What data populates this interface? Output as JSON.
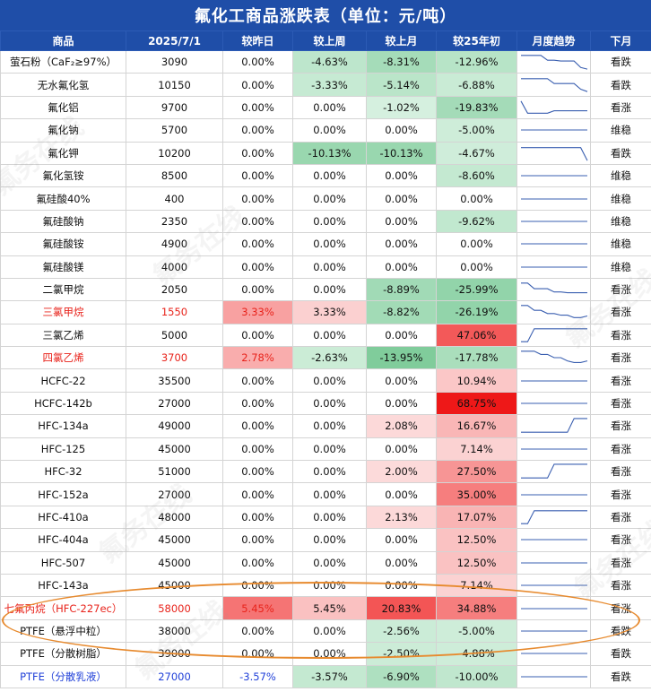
{
  "title": "氟化工商品涨跌表（单位：元/吨）",
  "columns": [
    "商品",
    "2025/7/1",
    "较昨日",
    "较上周",
    "较上月",
    "较25年初",
    "月度趋势",
    "下月"
  ],
  "watermark_text": "氟务在线",
  "colors": {
    "header_bg": "#1f4ea8",
    "red_text": "#e8231b",
    "blue_text": "#1f3fd8",
    "highlight_ring": "#e78a2e"
  },
  "rows": [
    {
      "name": "萤石粉（CaF₂≥97%）",
      "price": "3090",
      "day": "0.00%",
      "week": "-4.63%",
      "month": "-8.31%",
      "ytd": "-12.96%",
      "outlook": "看跌",
      "trend": [
        0.9,
        0.9,
        0.9,
        0.9,
        0.6,
        0.6,
        0.55,
        0.55,
        0.55,
        0.15,
        0.05
      ]
    },
    {
      "name": "无水氟化氢",
      "price": "10150",
      "day": "0.00%",
      "week": "-3.33%",
      "month": "-5.14%",
      "ytd": "-6.88%",
      "outlook": "看跌",
      "trend": [
        0.9,
        0.9,
        0.9,
        0.9,
        0.9,
        0.6,
        0.6,
        0.6,
        0.6,
        0.25,
        0.1
      ]
    },
    {
      "name": "氟化铝",
      "price": "9700",
      "day": "0.00%",
      "week": "0.00%",
      "month": "-1.02%",
      "ytd": "-19.83%",
      "outlook": "看涨",
      "trend": [
        0.9,
        0.15,
        0.15,
        0.15,
        0.15,
        0.3,
        0.3,
        0.3,
        0.3,
        0.3,
        0.3
      ]
    },
    {
      "name": "氟化钠",
      "price": "5700",
      "day": "0.00%",
      "week": "0.00%",
      "month": "0.00%",
      "ytd": "-5.00%",
      "outlook": "维稳",
      "trend": [
        0.5,
        0.5,
        0.5,
        0.5,
        0.5,
        0.5,
        0.5,
        0.5,
        0.5,
        0.5,
        0.5
      ]
    },
    {
      "name": "氟化钾",
      "price": "10200",
      "day": "0.00%",
      "week": "-10.13%",
      "month": "-10.13%",
      "ytd": "-4.67%",
      "outlook": "看跌",
      "trend": [
        0.85,
        0.85,
        0.85,
        0.85,
        0.85,
        0.85,
        0.85,
        0.85,
        0.85,
        0.85,
        0.05
      ]
    },
    {
      "name": "氟化氢铵",
      "price": "8500",
      "day": "0.00%",
      "week": "0.00%",
      "month": "0.00%",
      "ytd": "-8.60%",
      "outlook": "维稳",
      "trend": [
        0.5,
        0.5,
        0.5,
        0.5,
        0.5,
        0.5,
        0.5,
        0.5,
        0.5,
        0.5,
        0.5
      ]
    },
    {
      "name": "氟硅酸40%",
      "price": "400",
      "day": "0.00%",
      "week": "0.00%",
      "month": "0.00%",
      "ytd": "0.00%",
      "outlook": "维稳",
      "trend": [
        0.5,
        0.5,
        0.5,
        0.5,
        0.5,
        0.5,
        0.5,
        0.5,
        0.5,
        0.5,
        0.5
      ]
    },
    {
      "name": "氟硅酸钠",
      "price": "2350",
      "day": "0.00%",
      "week": "0.00%",
      "month": "0.00%",
      "ytd": "-9.62%",
      "outlook": "维稳",
      "trend": [
        0.5,
        0.5,
        0.5,
        0.5,
        0.5,
        0.5,
        0.5,
        0.5,
        0.5,
        0.5,
        0.5
      ]
    },
    {
      "name": "氟硅酸铵",
      "price": "4900",
      "day": "0.00%",
      "week": "0.00%",
      "month": "0.00%",
      "ytd": "0.00%",
      "outlook": "维稳",
      "trend": [
        0.5,
        0.5,
        0.5,
        0.5,
        0.5,
        0.5,
        0.5,
        0.5,
        0.5,
        0.5,
        0.5
      ]
    },
    {
      "name": "氟硅酸镁",
      "price": "4000",
      "day": "0.00%",
      "week": "0.00%",
      "month": "0.00%",
      "ytd": "0.00%",
      "outlook": "维稳",
      "trend": [
        0.5,
        0.5,
        0.5,
        0.5,
        0.5,
        0.5,
        0.5,
        0.5,
        0.5,
        0.5,
        0.5
      ]
    },
    {
      "name": "二氯甲烷",
      "price": "2050",
      "day": "0.00%",
      "week": "0.00%",
      "month": "-8.89%",
      "ytd": "-25.99%",
      "outlook": "看涨",
      "trend": [
        0.9,
        0.9,
        0.55,
        0.55,
        0.55,
        0.35,
        0.35,
        0.3,
        0.3,
        0.3,
        0.3
      ]
    },
    {
      "name": "三氯甲烷",
      "price": "1550",
      "day": "3.33%",
      "week": "3.33%",
      "month": "-8.82%",
      "ytd": "-26.19%",
      "outlook": "看涨",
      "red": true,
      "trend": [
        0.9,
        0.9,
        0.6,
        0.6,
        0.4,
        0.4,
        0.3,
        0.3,
        0.15,
        0.15,
        0.25
      ]
    },
    {
      "name": "三氯乙烯",
      "price": "5000",
      "day": "0.00%",
      "week": "0.00%",
      "month": "0.00%",
      "ytd": "47.06%",
      "outlook": "看涨",
      "trend": [
        0.1,
        0.1,
        0.9,
        0.9,
        0.9,
        0.9,
        0.9,
        0.9,
        0.9,
        0.9,
        0.9
      ]
    },
    {
      "name": "四氯乙烯",
      "price": "3700",
      "day": "2.78%",
      "week": "-2.63%",
      "month": "-13.95%",
      "ytd": "-17.78%",
      "outlook": "看涨",
      "red": true,
      "trend": [
        0.9,
        0.9,
        0.9,
        0.7,
        0.7,
        0.5,
        0.5,
        0.3,
        0.2,
        0.2,
        0.3
      ]
    },
    {
      "name": "HCFC-22",
      "price": "35500",
      "day": "0.00%",
      "week": "0.00%",
      "month": "0.00%",
      "ytd": "10.94%",
      "outlook": "看涨",
      "trend": [
        0.5,
        0.5,
        0.5,
        0.5,
        0.5,
        0.5,
        0.5,
        0.5,
        0.5,
        0.5,
        0.5
      ]
    },
    {
      "name": "HCFC-142b",
      "price": "27000",
      "day": "0.00%",
      "week": "0.00%",
      "month": "0.00%",
      "ytd": "68.75%",
      "outlook": "看涨",
      "trend": [
        0.5,
        0.5,
        0.5,
        0.5,
        0.5,
        0.5,
        0.5,
        0.5,
        0.5,
        0.5,
        0.5
      ]
    },
    {
      "name": "HFC-134a",
      "price": "49000",
      "day": "0.00%",
      "week": "0.00%",
      "month": "2.08%",
      "ytd": "16.67%",
      "outlook": "看涨",
      "trend": [
        0.1,
        0.1,
        0.1,
        0.1,
        0.1,
        0.1,
        0.1,
        0.1,
        0.95,
        0.95,
        0.95
      ]
    },
    {
      "name": "HFC-125",
      "price": "45000",
      "day": "0.00%",
      "week": "0.00%",
      "month": "0.00%",
      "ytd": "7.14%",
      "outlook": "看涨",
      "trend": [
        0.5,
        0.5,
        0.5,
        0.5,
        0.5,
        0.5,
        0.5,
        0.5,
        0.5,
        0.5,
        0.5
      ]
    },
    {
      "name": "HFC-32",
      "price": "51000",
      "day": "0.00%",
      "week": "0.00%",
      "month": "2.00%",
      "ytd": "27.50%",
      "outlook": "看涨",
      "trend": [
        0.1,
        0.1,
        0.1,
        0.1,
        0.1,
        0.95,
        0.95,
        0.95,
        0.95,
        0.95,
        0.95
      ]
    },
    {
      "name": "HFC-152a",
      "price": "27000",
      "day": "0.00%",
      "week": "0.00%",
      "month": "0.00%",
      "ytd": "35.00%",
      "outlook": "看涨",
      "trend": [
        0.5,
        0.5,
        0.5,
        0.5,
        0.5,
        0.5,
        0.5,
        0.5,
        0.5,
        0.5,
        0.5
      ]
    },
    {
      "name": "HFC-410a",
      "price": "48000",
      "day": "0.00%",
      "week": "0.00%",
      "month": "2.13%",
      "ytd": "17.07%",
      "outlook": "看涨",
      "trend": [
        0.1,
        0.1,
        0.9,
        0.9,
        0.9,
        0.9,
        0.9,
        0.9,
        0.9,
        0.9,
        0.9
      ]
    },
    {
      "name": "HFC-404a",
      "price": "45000",
      "day": "0.00%",
      "week": "0.00%",
      "month": "0.00%",
      "ytd": "12.50%",
      "outlook": "看涨",
      "trend": [
        0.5,
        0.5,
        0.5,
        0.5,
        0.5,
        0.5,
        0.5,
        0.5,
        0.5,
        0.5,
        0.5
      ]
    },
    {
      "name": "HFC-507",
      "price": "45000",
      "day": "0.00%",
      "week": "0.00%",
      "month": "0.00%",
      "ytd": "12.50%",
      "outlook": "看涨",
      "trend": [
        0.5,
        0.5,
        0.5,
        0.5,
        0.5,
        0.5,
        0.5,
        0.5,
        0.5,
        0.5,
        0.5
      ]
    },
    {
      "name": "HFC-143a",
      "price": "45000",
      "day": "0.00%",
      "week": "0.00%",
      "month": "0.00%",
      "ytd": "7.14%",
      "outlook": "看涨",
      "trend": [
        0.5,
        0.5,
        0.5,
        0.5,
        0.5,
        0.5,
        0.5,
        0.5,
        0.5,
        0.5,
        0.5
      ]
    },
    {
      "name": "七氟丙烷（HFC-227ec）",
      "price": "58000",
      "day": "5.45%",
      "week": "5.45%",
      "month": "20.83%",
      "ytd": "34.88%",
      "outlook": "看涨",
      "red": true,
      "trend": [
        0.5,
        0.5,
        0.5,
        0.5,
        0.5,
        0.5,
        0.5,
        0.5,
        0.5,
        0.5,
        0.5
      ]
    },
    {
      "name": "PTFE（悬浮中粒）",
      "price": "38000",
      "day": "0.00%",
      "week": "0.00%",
      "month": "-2.56%",
      "ytd": "-5.00%",
      "outlook": "看跌",
      "trend": [
        0.5,
        0.5,
        0.5,
        0.5,
        0.5,
        0.5,
        0.5,
        0.5,
        0.5,
        0.5,
        0.5
      ]
    },
    {
      "name": "PTFE（分散树脂）",
      "price": "39000",
      "day": "0.00%",
      "week": "0.00%",
      "month": "-2.50%",
      "ytd": "-4.88%",
      "outlook": "看跌",
      "trend": [
        0.5,
        0.5,
        0.5,
        0.5,
        0.5,
        0.5,
        0.5,
        0.5,
        0.5,
        0.5,
        0.5
      ]
    },
    {
      "name": "PTFE（分散乳液）",
      "price": "27000",
      "day": "-3.57%",
      "week": "-3.57%",
      "month": "-6.90%",
      "ytd": "-10.00%",
      "outlook": "看跌",
      "blue": true,
      "trend": [
        0.5,
        0.5,
        0.5,
        0.5,
        0.5,
        0.5,
        0.5,
        0.5,
        0.5,
        0.5,
        0.5
      ]
    }
  ]
}
